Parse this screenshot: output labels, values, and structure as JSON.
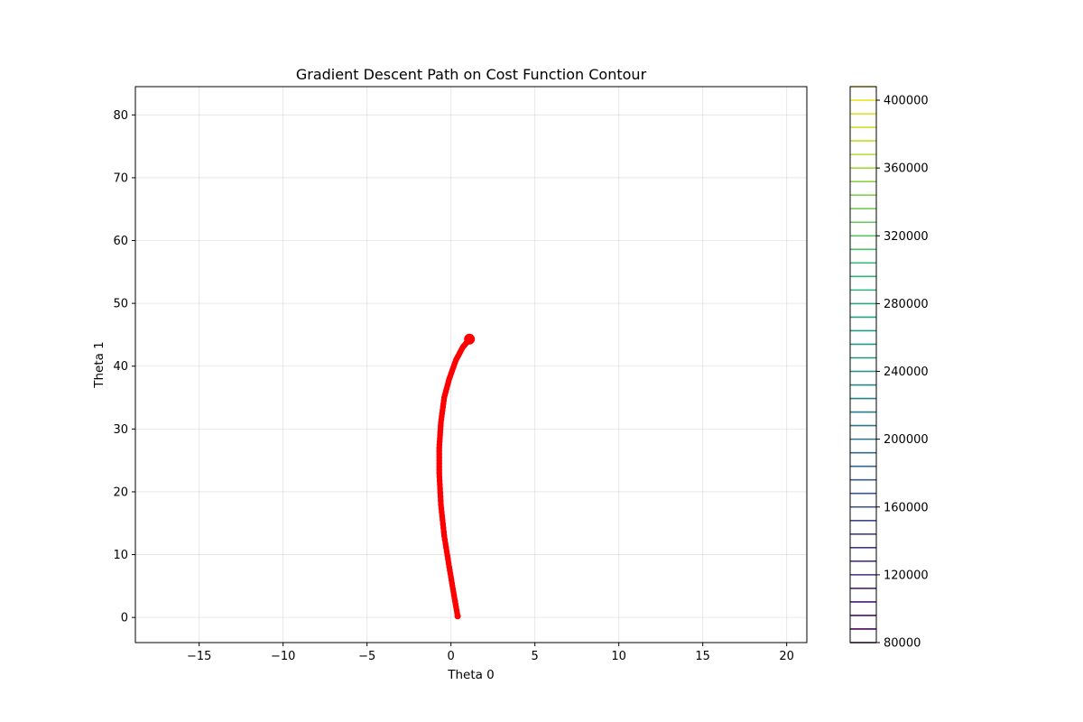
{
  "chart_data": {
    "type": "contour",
    "title": "Gradient Descent Path on Cost Function Contour",
    "xlabel": "Theta 0",
    "ylabel": "Theta 1",
    "xlim": [
      -18.8,
      21.2
    ],
    "ylim": [
      -4,
      84.5
    ],
    "xticks": [
      -15,
      -10,
      -5,
      0,
      5,
      10,
      15,
      20
    ],
    "yticks": [
      0,
      10,
      20,
      30,
      40,
      50,
      60,
      70,
      80
    ],
    "grid": true,
    "colormap": "viridis",
    "contour_levels": {
      "min": 80000,
      "max": 408000,
      "step": 8000
    },
    "colorbar": {
      "range": [
        80000,
        408000
      ],
      "ticks": [
        80000,
        120000,
        160000,
        200000,
        240000,
        280000,
        320000,
        360000,
        400000
      ]
    },
    "cost_bowl_center": {
      "theta0": -2.5,
      "theta1": -2
    },
    "path": {
      "color": "#ff0000",
      "start": {
        "theta0": 0.4,
        "theta1": 0.2
      },
      "end": {
        "theta0": 1.1,
        "theta1": 44.3
      },
      "points": [
        {
          "theta0": 0.4,
          "theta1": 0.2
        },
        {
          "theta0": 0.15,
          "theta1": 4
        },
        {
          "theta0": -0.1,
          "theta1": 8
        },
        {
          "theta0": -0.4,
          "theta1": 13
        },
        {
          "theta0": -0.6,
          "theta1": 18
        },
        {
          "theta0": -0.7,
          "theta1": 23
        },
        {
          "theta0": -0.7,
          "theta1": 27
        },
        {
          "theta0": -0.6,
          "theta1": 31
        },
        {
          "theta0": -0.4,
          "theta1": 35
        },
        {
          "theta0": -0.1,
          "theta1": 38
        },
        {
          "theta0": 0.3,
          "theta1": 41
        },
        {
          "theta0": 0.7,
          "theta1": 43
        },
        {
          "theta0": 1.1,
          "theta1": 44.3
        }
      ]
    }
  }
}
